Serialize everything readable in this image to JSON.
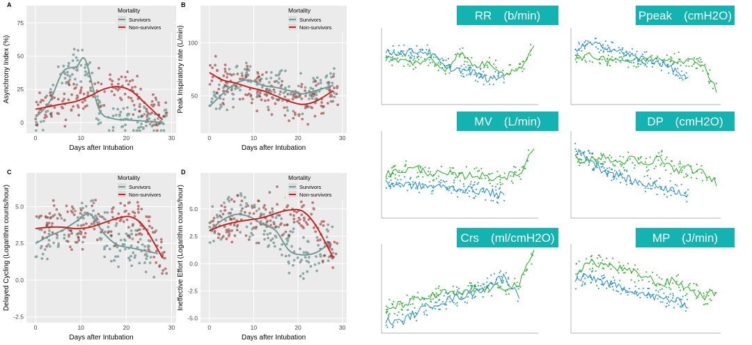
{
  "colors": {
    "survivors": "#6e9c95",
    "survivors_point": "#3f6f67",
    "non_survivors": "#cc2020",
    "non_survivors_point": "#8f1b1b",
    "panel_bg": "#ebebeb",
    "badge_bg": "#12b3b1",
    "small_green": "#1ea91e",
    "small_blue": "#1a8bc4"
  },
  "chart_data": [
    {
      "id": "A",
      "type": "scatter",
      "title": "",
      "xlabel": "Days after Intubation",
      "ylabel": "Asynchrony Index (%)",
      "xlim": [
        -2,
        31
      ],
      "ylim": [
        -8,
        88
      ],
      "xticks": [
        0,
        10,
        20,
        30
      ],
      "yticks": [
        0,
        25,
        50,
        75
      ],
      "legend": {
        "title": "Mortality",
        "entries": [
          "Survivors",
          "Non-survivors"
        ],
        "position": "top-right"
      },
      "series": [
        {
          "name": "Survivors",
          "x": [
            0,
            3,
            6,
            9,
            11,
            14,
            17,
            20,
            24,
            28
          ],
          "values": [
            4,
            15,
            38,
            42,
            47,
            10,
            3,
            2,
            1,
            0
          ]
        },
        {
          "name": "Non-survivors",
          "x": [
            0,
            3,
            6,
            9,
            12,
            15,
            18,
            21,
            24,
            28
          ],
          "values": [
            10,
            12,
            14,
            16,
            20,
            25,
            27,
            24,
            15,
            2
          ]
        }
      ]
    },
    {
      "id": "B",
      "type": "scatter",
      "xlabel": "Days after Intubation",
      "ylabel": "Peak Inspiratory rate (L/min)",
      "xlim": [
        -2,
        31
      ],
      "ylim": [
        15,
        135
      ],
      "xticks": [
        0,
        10,
        20,
        30
      ],
      "yticks": [
        50,
        100
      ],
      "legend": {
        "title": "Mortality",
        "entries": [
          "Survivors",
          "Non-survivors"
        ],
        "position": "top-right"
      },
      "series": [
        {
          "name": "Survivors",
          "x": [
            0,
            3,
            6,
            9,
            12,
            15,
            18,
            21,
            24,
            28
          ],
          "values": [
            40,
            52,
            62,
            65,
            60,
            58,
            55,
            52,
            55,
            60
          ]
        },
        {
          "name": "Non-survivors",
          "x": [
            0,
            3,
            6,
            9,
            12,
            15,
            18,
            21,
            24,
            28
          ],
          "values": [
            72,
            65,
            62,
            58,
            55,
            50,
            45,
            42,
            45,
            55
          ]
        }
      ]
    },
    {
      "id": "C",
      "type": "scatter",
      "xlabel": "Days after Intubation",
      "ylabel": "Delayed Cycling (Logarithm counts/hour)",
      "xlim": [
        -2,
        31
      ],
      "ylim": [
        -2.9,
        7.3
      ],
      "xticks": [
        0,
        10,
        20,
        30
      ],
      "yticks": [
        -2.5,
        0.0,
        2.5,
        5.0
      ],
      "legend": {
        "title": "Mortality",
        "entries": [
          "Survivors",
          "Non-survivors"
        ],
        "position": "top-right"
      },
      "series": [
        {
          "name": "Survivors",
          "x": [
            0,
            3,
            6,
            9,
            12,
            15,
            18,
            21,
            24,
            27
          ],
          "values": [
            2.5,
            3.0,
            3.4,
            4.0,
            4.5,
            3.2,
            2.4,
            2.2,
            2.0,
            1.8
          ]
        },
        {
          "name": "Non-survivors",
          "x": [
            0,
            3,
            6,
            9,
            12,
            15,
            18,
            21,
            24,
            28
          ],
          "values": [
            3.5,
            3.6,
            3.6,
            3.5,
            3.6,
            3.9,
            4.2,
            4.3,
            3.6,
            1.5
          ]
        }
      ]
    },
    {
      "id": "D",
      "type": "scatter",
      "xlabel": "Days after Intubation",
      "ylabel": "Ineffective Effort (Logarithm counts/hour)",
      "xlim": [
        -2,
        31
      ],
      "ylim": [
        -5.4,
        8.3
      ],
      "xticks": [
        0,
        10,
        20,
        30
      ],
      "yticks": [
        -5.0,
        -2.5,
        0.0,
        2.5,
        5.0
      ],
      "legend": {
        "title": "Mortality",
        "entries": [
          "Survivors",
          "Non-survivors"
        ],
        "position": "top-right"
      },
      "series": [
        {
          "name": "Survivors",
          "x": [
            0,
            3,
            6,
            9,
            12,
            15,
            18,
            21,
            24,
            27
          ],
          "values": [
            3.0,
            4.0,
            4.5,
            4.3,
            3.6,
            3.0,
            1.2,
            0.8,
            1.0,
            1.8
          ]
        },
        {
          "name": "Non-survivors",
          "x": [
            0,
            3,
            6,
            9,
            12,
            15,
            18,
            21,
            24,
            28
          ],
          "values": [
            3.0,
            3.5,
            3.8,
            4.0,
            4.2,
            4.6,
            4.9,
            4.8,
            3.5,
            0.5
          ]
        }
      ]
    },
    {
      "id": "RR",
      "type": "line",
      "title": "RR　(b/min)",
      "series": [
        {
          "name": "green",
          "x": [
            0,
            5,
            10,
            15,
            20,
            25,
            30,
            35,
            40,
            45,
            50
          ],
          "values": [
            62,
            58,
            55,
            60,
            45,
            70,
            50,
            55,
            40,
            45,
            80
          ]
        },
        {
          "name": "blue",
          "x": [
            0,
            5,
            10,
            15,
            20,
            25,
            30,
            35,
            40
          ],
          "values": [
            70,
            70,
            72,
            70,
            48,
            45,
            40,
            30,
            35
          ]
        }
      ]
    },
    {
      "id": "Ppeak",
      "type": "line",
      "title": "Ppeak　(cmH2O)",
      "series": [
        {
          "name": "green",
          "x": [
            0,
            5,
            10,
            15,
            20,
            25,
            30,
            35,
            40,
            45,
            50
          ],
          "values": [
            62,
            65,
            62,
            60,
            58,
            60,
            62,
            60,
            58,
            55,
            15
          ]
        },
        {
          "name": "blue",
          "x": [
            0,
            5,
            10,
            15,
            20,
            25,
            30,
            35,
            40
          ],
          "values": [
            75,
            82,
            80,
            72,
            65,
            60,
            55,
            45,
            30
          ]
        }
      ]
    },
    {
      "id": "MV",
      "type": "line",
      "title": "MV　(L/min)",
      "series": [
        {
          "name": "green",
          "x": [
            0,
            5,
            10,
            15,
            20,
            25,
            30,
            35,
            40,
            45,
            50
          ],
          "values": [
            50,
            55,
            58,
            52,
            50,
            48,
            50,
            46,
            48,
            50,
            85
          ]
        },
        {
          "name": "blue",
          "x": [
            0,
            5,
            10,
            15,
            20,
            25,
            30,
            35,
            40
          ],
          "values": [
            38,
            38,
            36,
            35,
            34,
            32,
            30,
            28,
            22
          ]
        }
      ]
    },
    {
      "id": "DP",
      "type": "line",
      "title": "DP　(cmH2O)",
      "series": [
        {
          "name": "green",
          "x": [
            0,
            5,
            10,
            15,
            20,
            25,
            30,
            35,
            40,
            45,
            50
          ],
          "values": [
            70,
            68,
            72,
            65,
            70,
            60,
            72,
            55,
            58,
            52,
            40
          ]
        },
        {
          "name": "blue",
          "x": [
            0,
            5,
            10,
            15,
            20,
            25,
            30,
            35,
            40
          ],
          "values": [
            80,
            70,
            55,
            50,
            42,
            38,
            35,
            30,
            25
          ]
        }
      ]
    },
    {
      "id": "Crs",
      "type": "line",
      "title": "Crs　(ml/cmH2O)",
      "series": [
        {
          "name": "green",
          "x": [
            0,
            5,
            10,
            15,
            20,
            25,
            30,
            35,
            40,
            45,
            50
          ],
          "values": [
            25,
            30,
            35,
            40,
            45,
            42,
            48,
            50,
            52,
            55,
            95
          ]
        },
        {
          "name": "blue",
          "x": [
            0,
            5,
            10,
            15,
            20,
            25,
            30,
            35,
            40,
            45
          ],
          "values": [
            10,
            8,
            20,
            30,
            35,
            40,
            45,
            55,
            65,
            40
          ]
        }
      ]
    },
    {
      "id": "MP",
      "type": "line",
      "title": "MP　(J/min)",
      "series": [
        {
          "name": "green",
          "x": [
            0,
            5,
            10,
            15,
            20,
            25,
            30,
            35,
            40,
            45,
            50
          ],
          "values": [
            70,
            82,
            80,
            75,
            70,
            65,
            55,
            60,
            50,
            40,
            45
          ]
        },
        {
          "name": "blue",
          "x": [
            0,
            5,
            10,
            15,
            20,
            25,
            30,
            35,
            40
          ],
          "values": [
            60,
            65,
            58,
            52,
            48,
            42,
            38,
            35,
            30
          ]
        }
      ]
    }
  ]
}
